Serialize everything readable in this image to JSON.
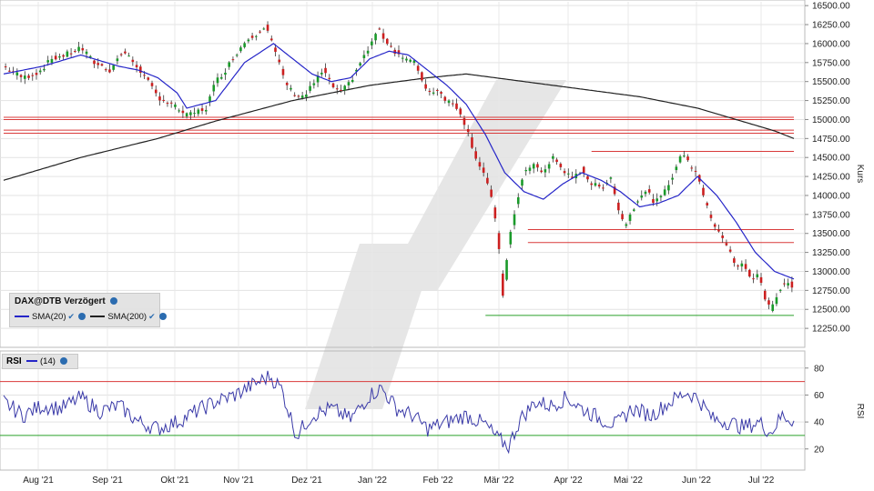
{
  "chart_data": [
    {
      "type": "candlestick",
      "y_axis_label": "Kurs",
      "y_ticks": [
        12250,
        12500,
        12750,
        13000,
        13250,
        13500,
        13750,
        14000,
        14250,
        14500,
        14750,
        15000,
        15250,
        15500,
        15750,
        16000,
        16250,
        16500
      ],
      "y_tick_labels": [
        "12250.00",
        "12500.00",
        "12750.00",
        "13000.00",
        "13250.00",
        "13500.00",
        "13750.00",
        "14000.00",
        "14250.00",
        "14500.00",
        "14750.00",
        "15000.00",
        "15250.00",
        "15500.00",
        "15750.00",
        "16000.00",
        "16250.00",
        "16500.00"
      ],
      "ylim": [
        12000,
        16550
      ],
      "x_ticks": [
        "Aug '21",
        "Sep '21",
        "Okt '21",
        "Nov '21",
        "Dez '21",
        "Jan '22",
        "Feb '22",
        "Mär '22",
        "Apr '22",
        "Mai '22",
        "Jun '22",
        "Jul '22"
      ],
      "legend": {
        "title": "DAX@DTB Verzögert",
        "items": [
          {
            "name": "SMA(20)",
            "color": "#2525c8"
          },
          {
            "name": "SMA(200)",
            "color": "#222222"
          }
        ]
      },
      "close_anchors": [
        [
          0,
          15700
        ],
        [
          10,
          15550
        ],
        [
          18,
          15620
        ],
        [
          25,
          15800
        ],
        [
          32,
          15850
        ],
        [
          40,
          15950
        ],
        [
          47,
          15750
        ],
        [
          55,
          15650
        ],
        [
          62,
          15900
        ],
        [
          70,
          15680
        ],
        [
          80,
          15300
        ],
        [
          90,
          15150
        ],
        [
          95,
          15050
        ],
        [
          105,
          15150
        ],
        [
          110,
          15500
        ],
        [
          115,
          15650
        ],
        [
          120,
          15850
        ],
        [
          126,
          16050
        ],
        [
          132,
          16150
        ],
        [
          136,
          16250
        ],
        [
          140,
          15950
        ],
        [
          146,
          15500
        ],
        [
          150,
          15350
        ],
        [
          156,
          15300
        ],
        [
          160,
          15450
        ],
        [
          166,
          15650
        ],
        [
          170,
          15450
        ],
        [
          175,
          15350
        ],
        [
          180,
          15500
        ],
        [
          185,
          15750
        ],
        [
          190,
          15950
        ],
        [
          194,
          16200
        ],
        [
          198,
          16050
        ],
        [
          203,
          15900
        ],
        [
          208,
          15800
        ],
        [
          213,
          15750
        ],
        [
          216,
          15600
        ],
        [
          220,
          15350
        ],
        [
          225,
          15400
        ],
        [
          230,
          15250
        ],
        [
          236,
          15150
        ],
        [
          240,
          14900
        ],
        [
          245,
          14500
        ],
        [
          250,
          14250
        ],
        [
          254,
          13850
        ],
        [
          257,
          13300
        ],
        [
          259,
          12700
        ],
        [
          262,
          13350
        ],
        [
          266,
          13900
        ],
        [
          270,
          14300
        ],
        [
          275,
          14400
        ],
        [
          280,
          14300
        ],
        [
          285,
          14500
        ],
        [
          290,
          14350
        ],
        [
          295,
          14200
        ],
        [
          300,
          14350
        ],
        [
          305,
          14150
        ],
        [
          310,
          14100
        ],
        [
          315,
          14250
        ],
        [
          318,
          13900
        ],
        [
          322,
          13600
        ],
        [
          326,
          13800
        ],
        [
          330,
          14000
        ],
        [
          334,
          14050
        ],
        [
          338,
          13900
        ],
        [
          342,
          14000
        ],
        [
          346,
          14200
        ],
        [
          350,
          14450
        ],
        [
          353,
          14550
        ],
        [
          356,
          14400
        ],
        [
          360,
          14300
        ],
        [
          364,
          13900
        ],
        [
          368,
          13650
        ],
        [
          372,
          13500
        ],
        [
          376,
          13300
        ],
        [
          380,
          13050
        ],
        [
          384,
          13100
        ],
        [
          388,
          12900
        ],
        [
          392,
          12950
        ],
        [
          395,
          12650
        ],
        [
          398,
          12500
        ],
        [
          400,
          12600
        ],
        [
          404,
          12850
        ],
        [
          408,
          12850
        ],
        [
          410,
          12750
        ]
      ],
      "sma20_anchors": [
        [
          0,
          15600
        ],
        [
          20,
          15700
        ],
        [
          40,
          15850
        ],
        [
          60,
          15700
        ],
        [
          70,
          15650
        ],
        [
          80,
          15550
        ],
        [
          90,
          15350
        ],
        [
          95,
          15150
        ],
        [
          110,
          15250
        ],
        [
          125,
          15750
        ],
        [
          140,
          16000
        ],
        [
          150,
          15800
        ],
        [
          160,
          15600
        ],
        [
          170,
          15500
        ],
        [
          180,
          15550
        ],
        [
          190,
          15800
        ],
        [
          200,
          15900
        ],
        [
          210,
          15850
        ],
        [
          220,
          15650
        ],
        [
          230,
          15450
        ],
        [
          240,
          15200
        ],
        [
          250,
          14800
        ],
        [
          260,
          14300
        ],
        [
          270,
          14050
        ],
        [
          280,
          13950
        ],
        [
          290,
          14150
        ],
        [
          300,
          14300
        ],
        [
          310,
          14200
        ],
        [
          320,
          14050
        ],
        [
          330,
          13850
        ],
        [
          340,
          13900
        ],
        [
          350,
          14000
        ],
        [
          360,
          14250
        ],
        [
          370,
          14000
        ],
        [
          380,
          13650
        ],
        [
          390,
          13250
        ],
        [
          400,
          13000
        ],
        [
          410,
          12900
        ]
      ],
      "sma200_anchors": [
        [
          0,
          14200
        ],
        [
          40,
          14500
        ],
        [
          80,
          14750
        ],
        [
          110,
          14980
        ],
        [
          150,
          15250
        ],
        [
          190,
          15450
        ],
        [
          220,
          15550
        ],
        [
          240,
          15600
        ],
        [
          270,
          15500
        ],
        [
          300,
          15400
        ],
        [
          330,
          15300
        ],
        [
          360,
          15150
        ],
        [
          380,
          15000
        ],
        [
          400,
          14850
        ],
        [
          410,
          14750
        ]
      ],
      "hlines": [
        {
          "y": 15030,
          "x0": 0,
          "x1": 410,
          "color": "#d93a3a"
        },
        {
          "y": 15000,
          "x0": 0,
          "x1": 410,
          "color": "#d93a3a"
        },
        {
          "y": 14860,
          "x0": 0,
          "x1": 410,
          "color": "#d93a3a"
        },
        {
          "y": 14820,
          "x0": 0,
          "x1": 410,
          "color": "#d93a3a"
        },
        {
          "y": 14580,
          "x0": 305,
          "x1": 410,
          "color": "#d93a3a"
        },
        {
          "y": 13550,
          "x0": 272,
          "x1": 410,
          "color": "#d93a3a"
        },
        {
          "y": 13380,
          "x0": 272,
          "x1": 410,
          "color": "#d93a3a"
        },
        {
          "y": 12420,
          "x0": 250,
          "x1": 410,
          "color": "#2aa02a"
        }
      ],
      "n_days": 411
    },
    {
      "type": "line",
      "legend": {
        "title": "RSI",
        "items": [
          {
            "name": "(14)",
            "color": "#2525c8"
          }
        ]
      },
      "y_axis_label": "RSI",
      "y_ticks": [
        20,
        40,
        60,
        80
      ],
      "ylim": [
        5,
        92
      ],
      "hlines": [
        {
          "y": 70,
          "color": "#d93a3a"
        },
        {
          "y": 30,
          "color": "#2aa02a"
        }
      ],
      "rsi_anchors": [
        [
          0,
          55
        ],
        [
          10,
          45
        ],
        [
          20,
          52
        ],
        [
          30,
          50
        ],
        [
          40,
          58
        ],
        [
          50,
          48
        ],
        [
          60,
          52
        ],
        [
          70,
          40
        ],
        [
          80,
          35
        ],
        [
          90,
          40
        ],
        [
          100,
          48
        ],
        [
          110,
          55
        ],
        [
          120,
          60
        ],
        [
          130,
          68
        ],
        [
          138,
          74
        ],
        [
          144,
          65
        ],
        [
          152,
          30
        ],
        [
          160,
          45
        ],
        [
          170,
          50
        ],
        [
          180,
          42
        ],
        [
          190,
          60
        ],
        [
          196,
          65
        ],
        [
          204,
          50
        ],
        [
          212,
          45
        ],
        [
          220,
          35
        ],
        [
          230,
          40
        ],
        [
          240,
          45
        ],
        [
          250,
          38
        ],
        [
          256,
          28
        ],
        [
          262,
          22
        ],
        [
          268,
          42
        ],
        [
          276,
          55
        ],
        [
          284,
          52
        ],
        [
          292,
          58
        ],
        [
          300,
          50
        ],
        [
          310,
          42
        ],
        [
          318,
          38
        ],
        [
          326,
          50
        ],
        [
          336,
          45
        ],
        [
          346,
          55
        ],
        [
          354,
          62
        ],
        [
          360,
          58
        ],
        [
          368,
          42
        ],
        [
          376,
          40
        ],
        [
          384,
          36
        ],
        [
          392,
          40
        ],
        [
          398,
          32
        ],
        [
          404,
          45
        ],
        [
          410,
          41
        ]
      ],
      "n_days": 411
    }
  ]
}
